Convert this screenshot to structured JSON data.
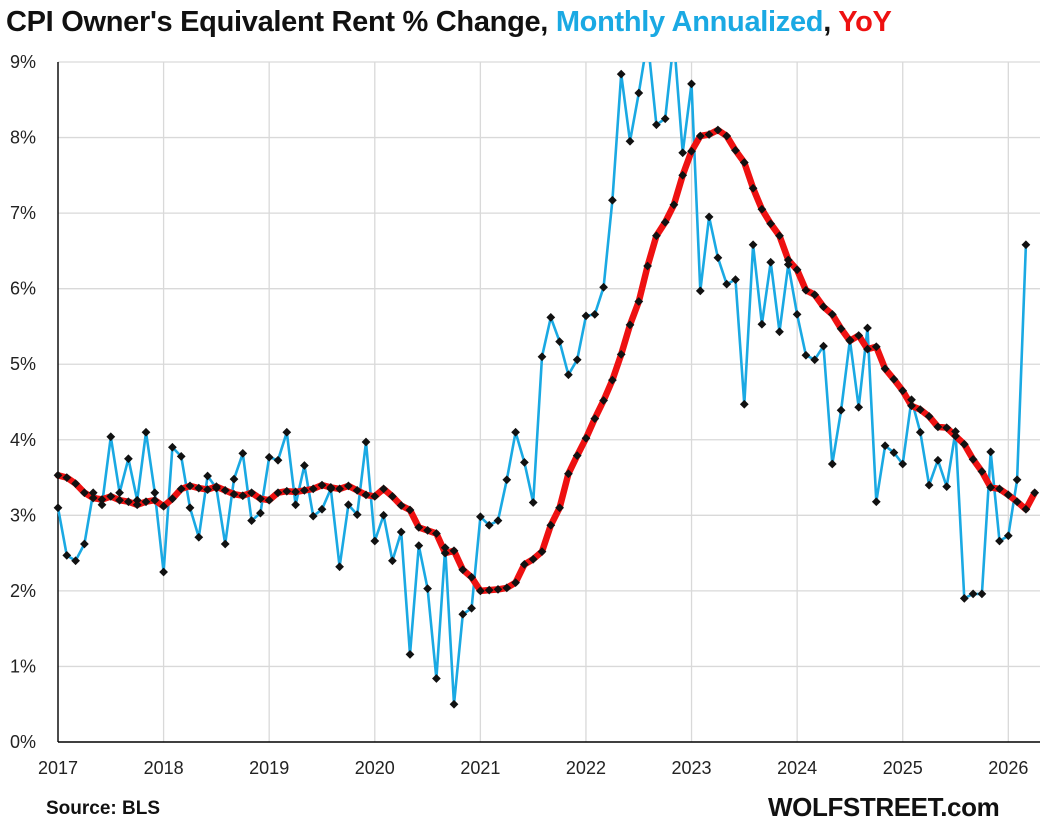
{
  "header": {
    "title_main": "CPI Owner's Equivalent Rent % Change, ",
    "title_monthly": "Monthly Annualized",
    "title_sep": ", ",
    "title_yoy": "YoY"
  },
  "footer": {
    "source": "Source: BLS",
    "brand": "WOLFSTREET.com"
  },
  "colors": {
    "monthly": "#1aa9e3",
    "yoy": "#ee1111",
    "marker": "#111111",
    "grid": "#d9d9d9",
    "axis": "#000000"
  },
  "chart_data": {
    "type": "line",
    "title": "CPI Owner's Equivalent Rent % Change, Monthly Annualized, YoY",
    "xlabel": "",
    "ylabel": "",
    "x_start": "2017-01",
    "x_end": "2026-03",
    "xlim": [
      2017.0,
      2026.3
    ],
    "ylim": [
      0,
      9
    ],
    "grid": true,
    "x_ticks": [
      "2017",
      "2018",
      "2019",
      "2020",
      "2021",
      "2022",
      "2023",
      "2024",
      "2025",
      "2026"
    ],
    "y_ticks": [
      "0%",
      "1%",
      "2%",
      "3%",
      "4%",
      "5%",
      "6%",
      "7%",
      "8%",
      "9%"
    ],
    "y_tick_values": [
      0,
      1,
      2,
      3,
      4,
      5,
      6,
      7,
      8,
      9
    ],
    "series": [
      {
        "name": "Monthly Annualized",
        "values": [
          3.1,
          2.47,
          2.4,
          2.62,
          3.3,
          3.14,
          4.04,
          3.3,
          3.75,
          3.2,
          4.1,
          3.3,
          2.25,
          3.9,
          3.78,
          3.1,
          2.71,
          3.52,
          3.36,
          2.62,
          3.48,
          3.82,
          2.93,
          3.03,
          3.77,
          3.73,
          4.1,
          3.14,
          3.66,
          2.99,
          3.08,
          3.35,
          2.32,
          3.14,
          3.01,
          3.97,
          2.66,
          3.0,
          2.4,
          2.78,
          1.16,
          2.6,
          2.03,
          0.84,
          2.57,
          0.5,
          1.69,
          1.77,
          2.98,
          2.87,
          2.93,
          3.47,
          4.1,
          3.7,
          3.17,
          5.1,
          5.62,
          5.3,
          4.86,
          5.06,
          5.64,
          5.66,
          6.02,
          7.17,
          8.84,
          7.95,
          8.59,
          9.3,
          8.17,
          8.25,
          9.3,
          7.8,
          8.71,
          5.97,
          6.95,
          6.41,
          6.06,
          6.12,
          4.47,
          6.58,
          5.53,
          6.35,
          5.43,
          6.32,
          5.66,
          5.12,
          5.06,
          5.24,
          3.68,
          4.39,
          5.32,
          4.43,
          5.48,
          3.18,
          3.92,
          3.83,
          3.68,
          4.53,
          4.1,
          3.4,
          3.73,
          3.38,
          4.11,
          1.9,
          1.96,
          1.96,
          3.84,
          2.66,
          2.73,
          3.47,
          6.58
        ]
      },
      {
        "name": "YoY",
        "values": [
          3.53,
          3.5,
          3.42,
          3.3,
          3.23,
          3.21,
          3.25,
          3.2,
          3.18,
          3.14,
          3.18,
          3.2,
          3.12,
          3.22,
          3.35,
          3.39,
          3.36,
          3.34,
          3.38,
          3.33,
          3.28,
          3.26,
          3.3,
          3.22,
          3.2,
          3.3,
          3.32,
          3.31,
          3.33,
          3.35,
          3.4,
          3.37,
          3.35,
          3.39,
          3.33,
          3.27,
          3.25,
          3.35,
          3.25,
          3.13,
          3.07,
          2.84,
          2.8,
          2.76,
          2.5,
          2.53,
          2.28,
          2.18,
          2.0,
          2.01,
          2.02,
          2.04,
          2.11,
          2.35,
          2.42,
          2.52,
          2.87,
          3.1,
          3.55,
          3.79,
          4.02,
          4.28,
          4.52,
          4.79,
          5.13,
          5.52,
          5.83,
          6.3,
          6.7,
          6.88,
          7.11,
          7.5,
          7.82,
          8.02,
          8.04,
          8.1,
          8.02,
          7.83,
          7.67,
          7.33,
          7.05,
          6.86,
          6.7,
          6.38,
          6.25,
          5.98,
          5.92,
          5.76,
          5.66,
          5.47,
          5.31,
          5.38,
          5.2,
          5.23,
          4.94,
          4.8,
          4.65,
          4.45,
          4.4,
          4.31,
          4.17,
          4.16,
          4.05,
          3.94,
          3.74,
          3.58,
          3.37,
          3.35,
          3.27,
          3.18,
          3.08,
          3.3
        ]
      }
    ]
  }
}
